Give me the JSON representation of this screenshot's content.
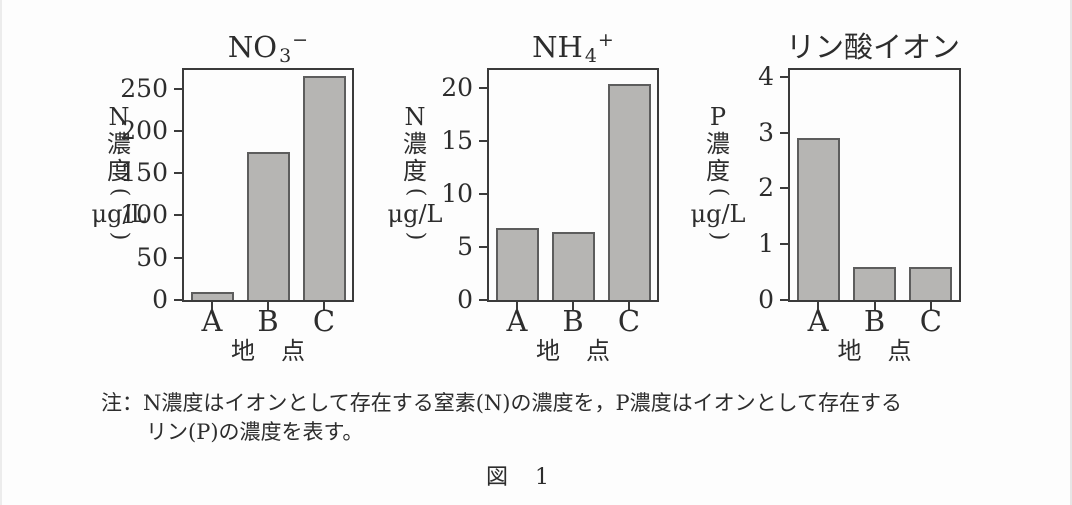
{
  "figure": {
    "note_line1": "注：N濃度はイオンとして存在する窒素(N)の濃度を，P濃度はイオンとして存在する",
    "note_line2": "リン(P)の濃度を表す。",
    "caption": "図　1",
    "caption_chars": [
      "図",
      "1"
    ]
  },
  "colors": {
    "background": "#fdfdfd",
    "bar_fill": "#b6b5b3",
    "bar_border": "#5d5d5d",
    "axis": "#3b3b3b",
    "text": "#2d2d2d"
  },
  "chart_data": [
    {
      "type": "bar",
      "title": {
        "base": "NO",
        "sub": "3",
        "sup": "−",
        "plain": "NO3−"
      },
      "y_axis_label": {
        "letters": [
          "N",
          "濃",
          "度"
        ],
        "paren_open": "(",
        "unit": "μg/L",
        "paren_close": ")",
        "plain": "N濃度(μg/L)"
      },
      "xlabel": "地　点",
      "xlabel_chars": [
        "地",
        "点"
      ],
      "categories": [
        "A",
        "B",
        "C"
      ],
      "values": [
        9,
        175,
        265
      ],
      "yticks": [
        0,
        50,
        100,
        150,
        200,
        250
      ],
      "ylim": [
        0,
        272
      ],
      "grid": false,
      "legend": null
    },
    {
      "type": "bar",
      "title": {
        "base": "NH",
        "sub": "4",
        "sup": "+",
        "plain": "NH4+"
      },
      "y_axis_label": {
        "letters": [
          "N",
          "濃",
          "度"
        ],
        "paren_open": "(",
        "unit": "μg/L",
        "paren_close": ")",
        "plain": "N濃度(μg/L)"
      },
      "xlabel": "地　点",
      "xlabel_chars": [
        "地",
        "点"
      ],
      "categories": [
        "A",
        "B",
        "C"
      ],
      "values": [
        6.8,
        6.4,
        20.4
      ],
      "yticks": [
        0,
        5,
        10,
        15,
        20
      ],
      "ylim": [
        0,
        21.7
      ],
      "grid": false,
      "legend": null
    },
    {
      "type": "bar",
      "title": {
        "base": "リン酸イオン",
        "sub": "",
        "sup": "",
        "plain": "リン酸イオン"
      },
      "y_axis_label": {
        "letters": [
          "P",
          "濃",
          "度"
        ],
        "paren_open": "(",
        "unit": "μg/L",
        "paren_close": ")",
        "plain": "P濃度(μg/L)"
      },
      "xlabel": "地　点",
      "xlabel_chars": [
        "地",
        "点"
      ],
      "categories": [
        "A",
        "B",
        "C"
      ],
      "values": [
        2.9,
        0.6,
        0.6
      ],
      "yticks": [
        0,
        1,
        2,
        3,
        4
      ],
      "ylim": [
        0,
        4.12
      ],
      "grid": false,
      "legend": null
    }
  ]
}
